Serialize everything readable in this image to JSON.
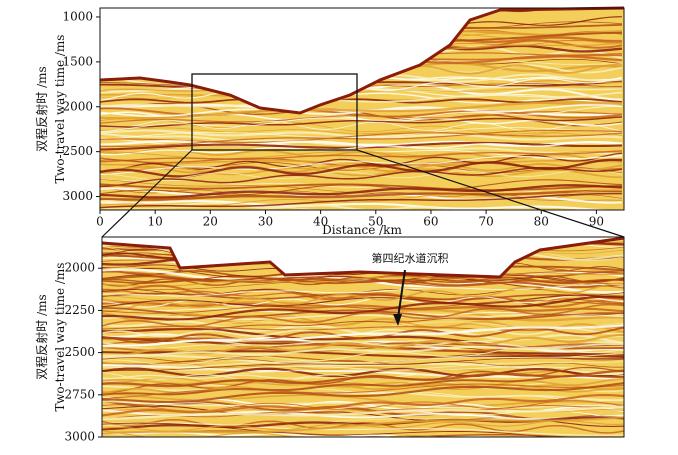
{
  "top_panel": {
    "y_label_cn": "双程反射时 /ms",
    "y_label_en": "Two-travel way time /ms",
    "x_label": "Distance /km",
    "xlim": [
      0,
      95
    ],
    "xticks": [
      0,
      10,
      20,
      30,
      40,
      50,
      60,
      70,
      80,
      90
    ],
    "ylim": [
      900,
      3150
    ],
    "yticks": [
      1000,
      1500,
      2000,
      2500,
      3000
    ]
  },
  "bottom_panel": {
    "y_label_cn": "双程反射时 /ms",
    "y_label_en": "Two-travel way time /ms",
    "ylim": [
      1815,
      3000
    ],
    "yticks": [
      2000,
      2250,
      2500,
      2750,
      3000
    ],
    "annotation": "第四纪水道沉积"
  }
}
